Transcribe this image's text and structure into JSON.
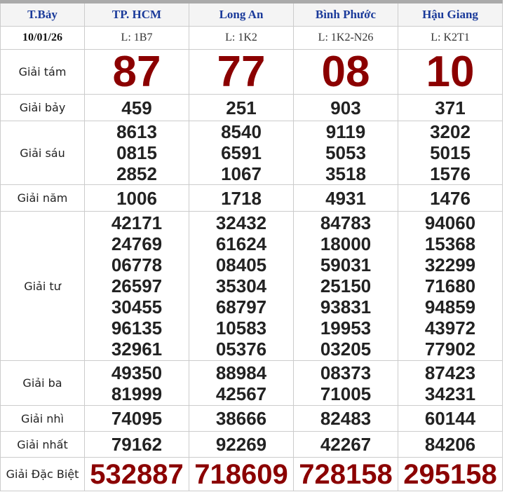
{
  "header": {
    "columns": [
      "T.Bảy",
      "TP. HCM",
      "Long An",
      "Bình Phước",
      "Hậu Giang"
    ],
    "codes": [
      "10/01/26",
      "L: 1B7",
      "L: 1K2",
      "L: 1K2-N26",
      "L: K2T1"
    ]
  },
  "table": {
    "rows": [
      {
        "label": "Giải tám",
        "cells": [
          [
            "87"
          ],
          [
            "77"
          ],
          [
            "08"
          ],
          [
            "10"
          ]
        ]
      },
      {
        "label": "Giải bảy",
        "cells": [
          [
            "459"
          ],
          [
            "251"
          ],
          [
            "903"
          ],
          [
            "371"
          ]
        ]
      },
      {
        "label": "Giải sáu",
        "cells": [
          [
            "8613",
            "0815",
            "2852"
          ],
          [
            "8540",
            "6591",
            "1067"
          ],
          [
            "9119",
            "5053",
            "3518"
          ],
          [
            "3202",
            "5015",
            "1576"
          ]
        ]
      },
      {
        "label": "Giải năm",
        "cells": [
          [
            "1006"
          ],
          [
            "1718"
          ],
          [
            "4931"
          ],
          [
            "1476"
          ]
        ]
      },
      {
        "label": "Giải tư",
        "cells": [
          [
            "42171",
            "24769",
            "06778",
            "26597",
            "30455",
            "96135",
            "32961"
          ],
          [
            "32432",
            "61624",
            "08405",
            "35304",
            "68797",
            "10583",
            "05376"
          ],
          [
            "84783",
            "18000",
            "59031",
            "25150",
            "93831",
            "19953",
            "03205"
          ],
          [
            "94060",
            "15368",
            "32299",
            "71680",
            "94859",
            "43972",
            "77902"
          ]
        ]
      },
      {
        "label": "Giải ba",
        "cells": [
          [
            "49350",
            "81999"
          ],
          [
            "88984",
            "42567"
          ],
          [
            "08373",
            "71005"
          ],
          [
            "87423",
            "34231"
          ]
        ]
      },
      {
        "label": "Giải nhì",
        "cells": [
          [
            "74095"
          ],
          [
            "38666"
          ],
          [
            "82483"
          ],
          [
            "60144"
          ]
        ]
      },
      {
        "label": "Giải nhất",
        "cells": [
          [
            "79162"
          ],
          [
            "92269"
          ],
          [
            "42267"
          ],
          [
            "84206"
          ]
        ]
      },
      {
        "label": "Giải Đặc Biệt",
        "cells": [
          [
            "532887"
          ],
          [
            "718609"
          ],
          [
            "728158"
          ],
          [
            "295158"
          ]
        ]
      }
    ]
  }
}
